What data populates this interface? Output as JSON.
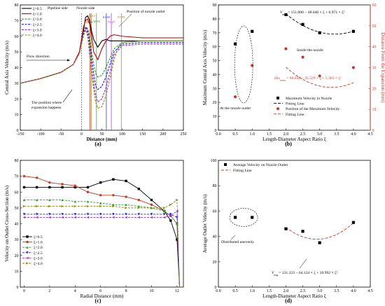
{
  "figure": {
    "panels": [
      {
        "id": "a",
        "label": "(a)"
      },
      {
        "id": "b",
        "label": "(b)"
      },
      {
        "id": "c",
        "label": "(c)"
      },
      {
        "id": "d",
        "label": "(d)"
      }
    ]
  },
  "chart_data": [
    {
      "id": "a",
      "type": "line",
      "xlabel": "Distance (mm)",
      "ylabel": "Central Axis Velocity (m/s)",
      "xlim": [
        -150,
        250
      ],
      "ylim": [
        0,
        80
      ],
      "xticks": [
        -150,
        -100,
        -50,
        0,
        50,
        100,
        150,
        200,
        250
      ],
      "yticks": [
        0,
        10,
        20,
        30,
        40,
        50,
        60,
        70,
        80
      ],
      "legend": {
        "placement": "top-left"
      },
      "series": [
        {
          "name": "ξ=0.5",
          "color": "#000000",
          "dash": "",
          "x": [
            -150,
            -100,
            -50,
            -20,
            -5,
            5,
            10,
            15,
            20,
            25,
            30,
            40,
            50,
            60,
            70,
            80,
            100,
            150,
            200,
            250
          ],
          "y": [
            30,
            33,
            37,
            42,
            50,
            64,
            72,
            73,
            70,
            63,
            58,
            53,
            57,
            58,
            57,
            57,
            57,
            57,
            57,
            57
          ]
        },
        {
          "name": "ξ=1.0",
          "color": "#c00000",
          "dash": "",
          "x": [
            -150,
            -100,
            -50,
            -20,
            -5,
            5,
            10,
            15,
            20,
            25,
            30,
            40,
            50,
            60,
            70,
            80,
            100,
            150,
            200,
            250
          ],
          "y": [
            30,
            33,
            37,
            42,
            50,
            66,
            70,
            71,
            68,
            60,
            50,
            45,
            52,
            57,
            60,
            61,
            60,
            59,
            59,
            59
          ]
        },
        {
          "name": "ξ=2.0",
          "color": "#2ca02c",
          "dash": "3,1.5",
          "x": [
            -150,
            -100,
            -50,
            -20,
            -5,
            5,
            10,
            15,
            20,
            25,
            30,
            35,
            40,
            50,
            60,
            70,
            80,
            100,
            150,
            200,
            250
          ],
          "y": [
            30,
            33,
            37,
            42,
            49,
            62,
            66,
            65,
            60,
            50,
            42,
            36,
            34,
            35,
            40,
            46,
            52,
            56,
            57,
            57,
            57
          ]
        },
        {
          "name": "ξ=2.5",
          "color": "#1f1fd0",
          "dash": "3,1.5",
          "x": [
            -150,
            -100,
            -50,
            -20,
            -5,
            5,
            10,
            15,
            20,
            25,
            30,
            35,
            40,
            50,
            60,
            70,
            80,
            100,
            150,
            200,
            250
          ],
          "y": [
            30,
            33,
            37,
            42,
            49,
            62,
            66,
            64,
            56,
            46,
            36,
            28,
            26,
            28,
            34,
            42,
            50,
            55,
            56,
            56,
            56
          ]
        },
        {
          "name": "ξ=3.0",
          "color": "#9b30d0",
          "dash": "3,1.5",
          "x": [
            -150,
            -100,
            -50,
            -20,
            -5,
            5,
            10,
            15,
            20,
            25,
            30,
            35,
            40,
            50,
            60,
            70,
            80,
            100,
            150,
            200,
            250
          ],
          "y": [
            30,
            33,
            37,
            42,
            49,
            61,
            65,
            62,
            52,
            40,
            30,
            22,
            18,
            20,
            27,
            37,
            48,
            54,
            55,
            55,
            55
          ]
        },
        {
          "name": "ξ=4.0",
          "color": "#8a8a1a",
          "dash": "3,1.5",
          "x": [
            -150,
            -100,
            -50,
            -20,
            -5,
            5,
            10,
            15,
            20,
            25,
            30,
            35,
            40,
            50,
            60,
            70,
            80,
            90,
            100,
            150,
            200,
            250
          ],
          "y": [
            30,
            33,
            37,
            42,
            49,
            60,
            64,
            60,
            48,
            36,
            26,
            18,
            14,
            15,
            22,
            33,
            45,
            53,
            56,
            57,
            57,
            57
          ]
        }
      ],
      "vlines": [
        {
          "x": 0,
          "color": "#555555",
          "dash": "2,1.5",
          "label": ""
        },
        {
          "x": 21.21,
          "color": "#c00000",
          "dash": "",
          "label": "21.21"
        },
        {
          "x": 24.42,
          "color": "#8a8a1a",
          "dash": "",
          "label": "24.42"
        },
        {
          "x": 36.84,
          "color": "#2ca02c",
          "dash": "",
          "label": "36.84"
        },
        {
          "x": 61.05,
          "color": "#1f1fd0",
          "dash": "",
          "label": "61.05"
        },
        {
          "x": 73.27,
          "color": "#9b30d0",
          "dash": "",
          "label": "73.27"
        },
        {
          "x": 97.69,
          "color": "#8a8a1a",
          "dash": "",
          "label": "97.69"
        }
      ],
      "annotations": {
        "pipeline_side": "Pipeline side",
        "nozzle_side": "Nozzle side",
        "nozzle_outlet": "Position of nozzle outlet",
        "flow_direction": "Flow direction",
        "expansion_line1": "The position where",
        "expansion_line2": "expansion happens"
      }
    },
    {
      "id": "b",
      "type": "scatter",
      "xlabel": "Length-Diameter Aspect Ratio ξ",
      "ylabel": "Maximum Central Axis Velocity (m/s)",
      "ylabel_right": "Distance From the Expansion (mm)",
      "xlim": [
        0,
        4.5
      ],
      "ylim": [
        0,
        90
      ],
      "ylim_right": [
        0,
        60
      ],
      "xticks": [
        0.0,
        0.5,
        1.0,
        1.5,
        2.0,
        2.5,
        3.0,
        3.5,
        4.0,
        4.5
      ],
      "yticks": [
        0,
        10,
        20,
        30,
        40,
        50,
        60,
        70,
        80,
        90
      ],
      "yticks_right": [
        0,
        10,
        20,
        30,
        40,
        50,
        60
      ],
      "series": [
        {
          "name": "Maximum Velocity in Nozzle",
          "axis": "left",
          "marker": "square",
          "color": "#000000",
          "x": [
            0.5,
            1.0,
            2.0,
            2.5,
            3.0,
            4.0
          ],
          "y": [
            62,
            71,
            83,
            76,
            70,
            71
          ]
        },
        {
          "name": "Position of the Maximum Velocity",
          "axis": "right",
          "marker": "circle",
          "color": "#c0392b",
          "x": [
            0.5,
            1.0,
            2.0,
            2.5,
            3.0,
            4.0
          ],
          "y": [
            16,
            31,
            39,
            35,
            26,
            30
          ]
        }
      ],
      "fits": [
        {
          "name": "Fitting Line",
          "axis": "left",
          "color": "#000000",
          "dash": "4,2",
          "coef": [
            151.8,
            -48.046,
            6.971
          ],
          "range": [
            2.0,
            4.0
          ]
        },
        {
          "name": "Fitting Line",
          "axis": "right",
          "color": "#c0392b",
          "dash": "4,2",
          "coef": [
            80.038,
            -35.529,
            5.303
          ],
          "range": [
            2.0,
            4.0
          ]
        }
      ],
      "annotations": {
        "vmax_label": "V",
        "vmax_sub": "max",
        "vmax_formula": "= 151.800 − 48.046 × ξ + 6.971 × ξ²",
        "dis_label": "Dis",
        "dis_sub": "vmax",
        "dis_formula": "= 80.038 − 35.529 × ξ + 5.303 × ξ²",
        "inside": "Inside the nozzle",
        "outlet": "At the nozzle outlet"
      },
      "legend": {
        "placement": "bottom-right",
        "items": [
          "Maximum Velocity in Nozzle",
          "Fitting Line",
          "Position of the Maximum Velocity",
          "Fitting Line"
        ]
      }
    },
    {
      "id": "c",
      "type": "line",
      "xlabel": "Radial Distance (mm)",
      "ylabel": "Velocity on Outlet Cross-Section (m/s)",
      "xlim": [
        -0.3,
        12.5
      ],
      "ylim": [
        0,
        80
      ],
      "xticks": [
        0,
        2,
        4,
        6,
        8,
        10,
        12
      ],
      "yticks": [
        0,
        10,
        20,
        30,
        40,
        50,
        60,
        70,
        80
      ],
      "legend": {
        "placement": "bottom-left"
      },
      "series": [
        {
          "name": "ξ=0.5",
          "color": "#000000",
          "dash": "",
          "marker": "square",
          "x": [
            0,
            1,
            2,
            3,
            4,
            5,
            6,
            7,
            8,
            9,
            10,
            11,
            11.5,
            12,
            12.2
          ],
          "y": [
            63,
            63,
            63,
            63,
            63,
            63,
            66,
            68,
            67,
            62,
            55,
            48,
            42,
            30,
            0
          ]
        },
        {
          "name": "ξ=1.0",
          "color": "#c0392b",
          "dash": "",
          "marker": "circle",
          "x": [
            0,
            1,
            2,
            3,
            4,
            5,
            6,
            7,
            8,
            9,
            10,
            11,
            11.5,
            12,
            12.2
          ],
          "y": [
            70,
            69,
            66,
            65,
            64,
            60,
            58,
            58,
            57,
            55,
            52,
            48,
            45,
            40,
            0
          ]
        },
        {
          "name": "ξ=2.0",
          "color": "#2ca02c",
          "dash": "3,1.5",
          "marker": "triangle",
          "x": [
            0,
            1,
            2,
            3,
            4,
            5,
            6,
            7,
            8,
            9,
            10,
            11,
            11.5,
            12,
            12.2
          ],
          "y": [
            55,
            55,
            55,
            55,
            54,
            54,
            53,
            52,
            52,
            51,
            50,
            48,
            45,
            40,
            0
          ]
        },
        {
          "name": "ξ=2.5",
          "color": "#1f1fd0",
          "dash": "3,1.5",
          "marker": "triangle-down",
          "x": [
            0,
            1,
            2,
            3,
            4,
            5,
            6,
            7,
            8,
            9,
            10,
            11,
            11.5,
            12,
            12.2
          ],
          "y": [
            46,
            46,
            46,
            46,
            46,
            46,
            46,
            46,
            46,
            46,
            46,
            46,
            46,
            44,
            0
          ]
        },
        {
          "name": "ξ=3.0",
          "color": "#9b30d0",
          "dash": "3,1.5",
          "marker": "triangle-left",
          "x": [
            0,
            1,
            2,
            3,
            4,
            5,
            6,
            7,
            8,
            9,
            10,
            11,
            11.5,
            12,
            12.2
          ],
          "y": [
            44,
            44,
            44,
            44,
            44,
            44,
            44,
            44,
            44,
            44,
            44,
            44,
            45,
            48,
            0
          ]
        },
        {
          "name": "ξ=4.0",
          "color": "#8a8a1a",
          "dash": "3,1.5",
          "marker": "triangle-right",
          "x": [
            0,
            1,
            2,
            3,
            4,
            5,
            6,
            7,
            8,
            9,
            10,
            11,
            11.5,
            12,
            12.2
          ],
          "y": [
            51,
            51,
            51,
            51,
            51,
            51,
            51,
            51,
            50,
            50,
            50,
            50,
            52,
            55,
            0
          ]
        }
      ]
    },
    {
      "id": "d",
      "type": "scatter",
      "xlabel": "Length-Diameter Aspect Ratio ξ",
      "ylabel": "Average Outlet Velocity (m/s)",
      "xlim": [
        0,
        4.5
      ],
      "ylim": [
        0,
        100
      ],
      "xticks": [
        0.0,
        0.5,
        1.0,
        1.5,
        2.0,
        2.5,
        3.0,
        3.5,
        4.0,
        4.5
      ],
      "yticks": [
        0,
        20,
        40,
        60,
        80,
        100
      ],
      "legend": {
        "placement": "top-left"
      },
      "series": [
        {
          "name": "Average Velocity on Nozzle Outlet",
          "marker": "square",
          "color": "#000000",
          "x": [
            0.5,
            1.0,
            2.0,
            2.5,
            3.0,
            4.0
          ],
          "y": [
            55,
            55,
            46,
            44,
            35,
            51
          ]
        }
      ],
      "fits": [
        {
          "name": "Fitting Line",
          "color": "#c0392b",
          "dash": "4,2",
          "coef": [
            131.323,
            -64.134,
            10.992
          ],
          "range": [
            2.0,
            4.0
          ]
        }
      ],
      "annotations": {
        "uneven": "Distributed unevenly",
        "vavg_label": "V",
        "vavg_sub": "avg",
        "vavg_formula": "= 131.323 − 64.134 × ξ + 10.992 × ξ²"
      }
    }
  ]
}
